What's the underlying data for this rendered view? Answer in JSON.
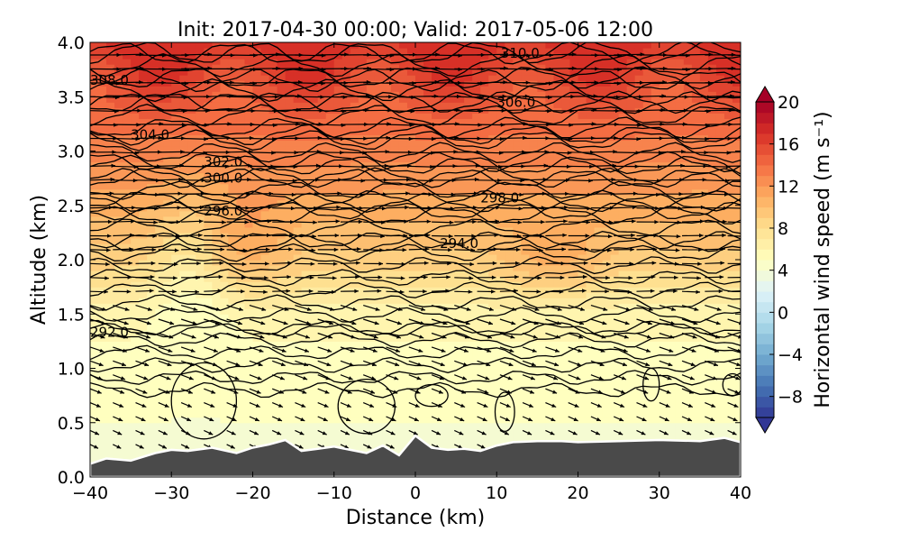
{
  "chart_data": {
    "type": "heatmap",
    "title": "Init: 2017-04-30 00:00; Valid: 2017-05-06 12:00",
    "xlabel": "Distance (km)",
    "ylabel": "Altitude (km)",
    "xlim": [
      -40,
      40
    ],
    "ylim": [
      0,
      4
    ],
    "x_ticks": [
      "−40",
      "−30",
      "−20",
      "−10",
      "0",
      "10",
      "20",
      "30",
      "40"
    ],
    "y_ticks": [
      "0.0",
      "0.5",
      "1.0",
      "1.5",
      "2.0",
      "2.5",
      "3.0",
      "3.5",
      "4.0"
    ],
    "colorbar": {
      "label": "Horizontal wind speed (m s⁻¹)",
      "range": [
        -10,
        20
      ],
      "ticks": [
        "−8",
        "−4",
        "0",
        "4",
        "8",
        "12",
        "16",
        "20"
      ],
      "colormap": "RdYlBu_r",
      "extend": "both"
    },
    "wind_speed_profile": {
      "altitude_km": [
        0.0,
        0.5,
        1.0,
        1.5,
        2.0,
        2.5,
        3.0,
        3.5,
        4.0
      ],
      "speed_m_s": [
        4,
        4.5,
        5,
        6,
        9,
        11,
        13,
        15,
        17
      ]
    },
    "theta_contours": [
      {
        "label": "292.0",
        "altitude_km": 1.35
      },
      {
        "label": "294.0",
        "altitude_km": 2.15
      },
      {
        "label": "296.0",
        "altitude_km": 2.45
      },
      {
        "label": "298.0",
        "altitude_km": 2.55
      },
      {
        "label": "300.0",
        "altitude_km": 2.75
      },
      {
        "label": "302.0",
        "altitude_km": 2.9
      },
      {
        "label": "304.0",
        "altitude_km": 3.15
      },
      {
        "label": "306.0",
        "altitude_km": 3.45
      },
      {
        "label": "308.0",
        "altitude_km": 3.65
      },
      {
        "label": "310.0",
        "altitude_km": 3.9
      }
    ],
    "terrain": {
      "x_km": [
        -40,
        -38,
        -35,
        -32,
        -30,
        -28,
        -25,
        -22,
        -20,
        -18,
        -16,
        -14,
        -12,
        -10,
        -8,
        -6,
        -4,
        -2,
        0,
        2,
        4,
        6,
        8,
        10,
        12,
        15,
        18,
        20,
        25,
        30,
        35,
        38,
        40
      ],
      "height_km": [
        0.12,
        0.17,
        0.15,
        0.22,
        0.25,
        0.24,
        0.27,
        0.22,
        0.27,
        0.3,
        0.34,
        0.24,
        0.26,
        0.28,
        0.25,
        0.22,
        0.29,
        0.2,
        0.38,
        0.27,
        0.25,
        0.26,
        0.24,
        0.29,
        0.32,
        0.33,
        0.33,
        0.32,
        0.33,
        0.34,
        0.33,
        0.36,
        0.32
      ]
    }
  }
}
